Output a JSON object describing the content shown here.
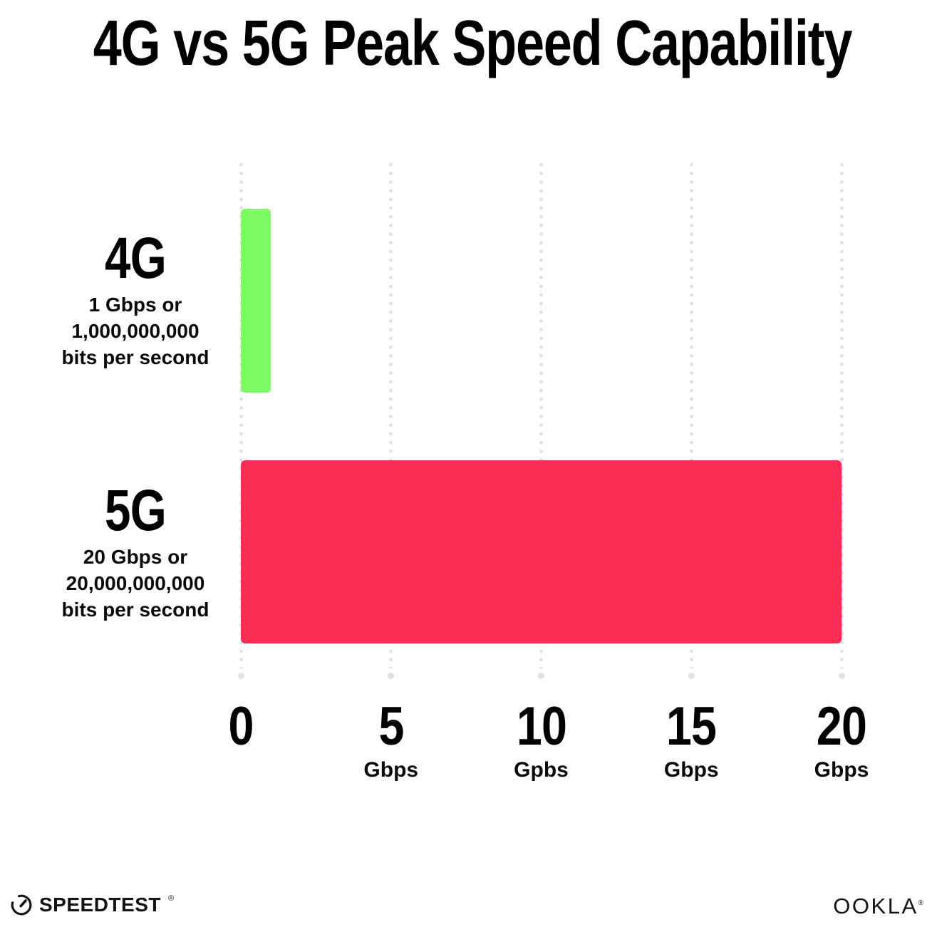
{
  "title": "4G vs 5G Peak Speed Capability",
  "chart_data": {
    "type": "bar",
    "orientation": "horizontal",
    "title": "4G vs 5G Peak Speed Capability",
    "categories": [
      "4G",
      "5G"
    ],
    "values": [
      1,
      20
    ],
    "value_unit": "Gbps",
    "bar_colors": [
      "#7DFB63",
      "#FC2D55"
    ],
    "category_sublabels": [
      [
        "1 Gbps or",
        "1,000,000,000",
        "bits per second"
      ],
      [
        "20 Gbps or",
        "20,000,000,000",
        "bits per second"
      ]
    ],
    "xlim": [
      0,
      20
    ],
    "x_ticks": [
      {
        "value": 0,
        "label": "0",
        "unit": ""
      },
      {
        "value": 5,
        "label": "5",
        "unit": "Gbps"
      },
      {
        "value": 10,
        "label": "10",
        "unit": "Gpbs"
      },
      {
        "value": 15,
        "label": "15",
        "unit": "Gbps"
      },
      {
        "value": 20,
        "label": "20",
        "unit": "Gbps"
      }
    ],
    "grid": "dotted-vertical-gridlines",
    "legend": "none"
  },
  "colors": {
    "bar_4g": "#7DFB63",
    "bar_5g": "#FC2D55",
    "gridline": "#DDDEE8",
    "text": "#0B0B0B",
    "background": "#FFFFFF"
  },
  "footer": {
    "speedtest_label": "SPEEDTEST",
    "speedtest_trademark": "®",
    "ookla_label": "OOKLA",
    "ookla_trademark": "®"
  }
}
